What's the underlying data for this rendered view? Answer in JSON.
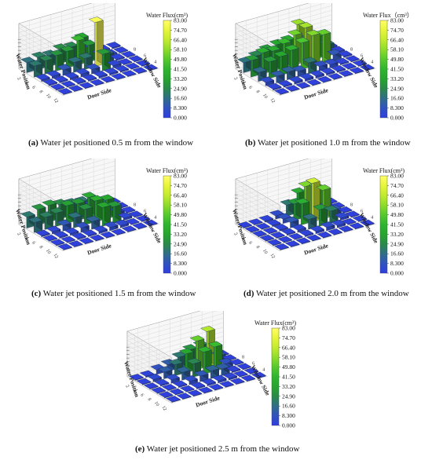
{
  "colorbar": {
    "ticks": [
      "83.00",
      "74.70",
      "66.40",
      "58.10",
      "49.80",
      "41.50",
      "33.20",
      "24.90",
      "16.60",
      "8.300",
      "0.000"
    ],
    "colors": [
      "#ffff66",
      "#e6f53a",
      "#c2eb2e",
      "#8fdc2a",
      "#55c92c",
      "#2fb52f",
      "#27a52f",
      "#2a8a4a",
      "#2f6e86",
      "#3152c0",
      "#2f3ee0"
    ]
  },
  "axes": {
    "door_side": "Door Side",
    "window_side": "Window Side",
    "water_position": "Water Position",
    "door_ticks": [
      "2",
      "4",
      "6",
      "8",
      "10",
      "12"
    ],
    "window_ticks": [
      "2",
      "4",
      "6",
      "8"
    ]
  },
  "chart_data": [
    {
      "type": "bar",
      "subtype": "3d-bar",
      "caption_letter": "(a)",
      "caption_text": " Water jet positioned 0.5 m from the window",
      "title": "Water Flux(cm³)",
      "zlim": [
        0,
        83
      ],
      "grid_rows": 6,
      "grid_cols": 9,
      "values": [
        [
          18,
          22,
          20,
          26,
          24,
          35,
          10,
          2,
          2
        ],
        [
          20,
          24,
          28,
          30,
          44,
          30,
          8,
          2,
          1
        ],
        [
          3,
          4,
          10,
          18,
          20,
          80,
          16,
          2,
          1
        ],
        [
          2,
          2,
          3,
          5,
          8,
          30,
          4,
          1,
          1
        ],
        [
          1,
          1,
          2,
          2,
          3,
          3,
          2,
          1,
          1
        ],
        [
          1,
          1,
          1,
          1,
          1,
          1,
          1,
          1,
          1
        ]
      ]
    },
    {
      "type": "bar",
      "subtype": "3d-bar",
      "caption_letter": "(b)",
      "caption_text": " Water jet positioned 1.0 m from the window",
      "title": "Water Flux（cm³）",
      "zlim": [
        0,
        83
      ],
      "grid_rows": 6,
      "grid_cols": 9,
      "values": [
        [
          18,
          24,
          30,
          34,
          36,
          60,
          28,
          10,
          2
        ],
        [
          30,
          38,
          36,
          44,
          54,
          62,
          40,
          20,
          2
        ],
        [
          16,
          30,
          34,
          40,
          48,
          56,
          52,
          10,
          2
        ],
        [
          6,
          12,
          14,
          10,
          20,
          8,
          6,
          2,
          1
        ],
        [
          2,
          2,
          4,
          4,
          4,
          3,
          2,
          1,
          1
        ],
        [
          1,
          1,
          1,
          1,
          1,
          1,
          1,
          1,
          1
        ]
      ]
    },
    {
      "type": "bar",
      "subtype": "3d-bar",
      "caption_letter": "(c)",
      "caption_text": " Water jet positioned 1.5 m from the window",
      "title": "Water Flux(cm³)",
      "zlim": [
        0,
        83
      ],
      "grid_rows": 6,
      "grid_cols": 9,
      "values": [
        [
          20,
          28,
          30,
          26,
          22,
          20,
          8,
          2,
          1
        ],
        [
          18,
          22,
          24,
          32,
          30,
          36,
          20,
          2,
          1
        ],
        [
          2,
          4,
          10,
          18,
          28,
          38,
          34,
          6,
          1
        ],
        [
          1,
          2,
          3,
          8,
          14,
          34,
          30,
          4,
          1
        ],
        [
          1,
          1,
          2,
          2,
          4,
          6,
          4,
          1,
          1
        ],
        [
          1,
          1,
          1,
          1,
          1,
          1,
          1,
          1,
          1
        ]
      ]
    },
    {
      "type": "bar",
      "subtype": "3d-bar",
      "caption_letter": "(d)",
      "caption_text": " Water jet positioned 2.0 m from the window",
      "title": "Water Flux(cm³)",
      "zlim": [
        0,
        83
      ],
      "grid_rows": 6,
      "grid_cols": 9,
      "values": [
        [
          1,
          1,
          2,
          6,
          20,
          36,
          30,
          6,
          1
        ],
        [
          1,
          1,
          2,
          8,
          30,
          56,
          48,
          8,
          1
        ],
        [
          1,
          1,
          2,
          10,
          38,
          70,
          52,
          10,
          1
        ],
        [
          1,
          1,
          2,
          4,
          18,
          30,
          22,
          4,
          1
        ],
        [
          1,
          1,
          1,
          2,
          4,
          6,
          4,
          1,
          1
        ],
        [
          1,
          1,
          1,
          1,
          1,
          1,
          1,
          1,
          1
        ]
      ]
    },
    {
      "type": "bar",
      "subtype": "3d-bar",
      "caption_letter": "(e)",
      "caption_text": " Water jet positioned 2.5 m from the window",
      "title": "Water Flux(cm³)",
      "zlim": [
        0,
        83
      ],
      "grid_rows": 6,
      "grid_cols": 9,
      "values": [
        [
          1,
          2,
          8,
          12,
          20,
          28,
          30,
          6,
          1
        ],
        [
          1,
          4,
          12,
          20,
          34,
          52,
          64,
          14,
          1
        ],
        [
          1,
          2,
          6,
          14,
          24,
          40,
          44,
          8,
          1
        ],
        [
          1,
          1,
          2,
          6,
          10,
          14,
          12,
          2,
          1
        ],
        [
          1,
          1,
          1,
          2,
          3,
          4,
          3,
          1,
          1
        ],
        [
          1,
          1,
          1,
          1,
          1,
          1,
          1,
          1,
          1
        ]
      ]
    }
  ]
}
